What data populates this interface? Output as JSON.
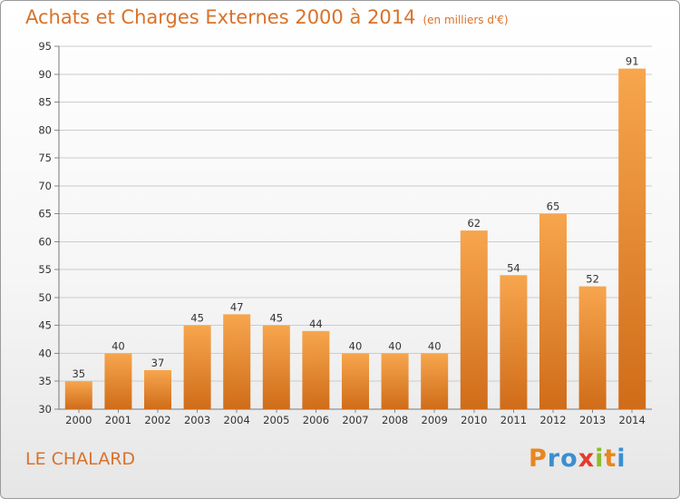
{
  "header": {
    "title": "Achats et Charges Externes 2000 à 2014",
    "subtitle": "(en milliers d'€)"
  },
  "footer": {
    "place": "LE CHALARD",
    "logo_text": "Proxiti",
    "logo_letter_colors": [
      "#e9861f",
      "#3a8fd1",
      "#3a8fd1",
      "#e43b2c",
      "#8bbd2a",
      "#e9861f",
      "#3a8fd1"
    ]
  },
  "colors": {
    "bar_light": "#f7a64e",
    "bar_dark": "#d06c19",
    "grid": "#cccccc",
    "accent": "#d9722a"
  },
  "chart_data": {
    "type": "bar",
    "title": "Achats et Charges Externes 2000 à 2014",
    "subtitle": "(en milliers d'€)",
    "xlabel": "",
    "ylabel": "",
    "categories": [
      "2000",
      "2001",
      "2002",
      "2003",
      "2004",
      "2005",
      "2006",
      "2007",
      "2008",
      "2009",
      "2010",
      "2011",
      "2012",
      "2013",
      "2014"
    ],
    "values": [
      35,
      40,
      37,
      45,
      47,
      45,
      44,
      40,
      40,
      40,
      62,
      54,
      65,
      52,
      91
    ],
    "ylim": [
      30,
      95
    ],
    "yticks": [
      30,
      35,
      40,
      45,
      50,
      55,
      60,
      65,
      70,
      75,
      80,
      85,
      90,
      95
    ],
    "grid": true,
    "data_labels": true
  }
}
